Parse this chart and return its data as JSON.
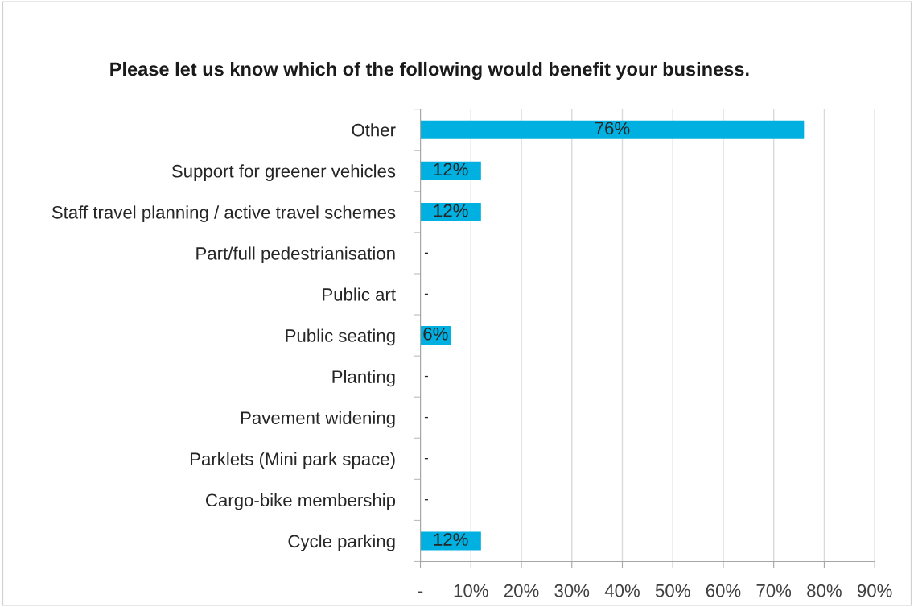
{
  "chart_data": {
    "type": "bar",
    "orientation": "horizontal",
    "title": "Please let us know which of the following would benefit your business.",
    "categories": [
      "Other",
      "Support for greener vehicles",
      "Staff travel planning / active travel schemes",
      "Part/full pedestrianisation",
      "Public art",
      "Public seating",
      "Planting",
      "Pavement widening",
      "Parklets (Mini park space)",
      "Cargo-bike membership",
      "Cycle parking"
    ],
    "values": [
      76,
      12,
      12,
      0,
      0,
      6,
      0,
      0,
      0,
      0,
      12
    ],
    "value_labels": [
      "76%",
      "12%",
      "12%",
      "-",
      "-",
      "6%",
      "-",
      "-",
      "-",
      "-",
      "12%"
    ],
    "color": "#00b0e0",
    "xlim": [
      0,
      90
    ],
    "xticks": [
      {
        "value": 0,
        "label": "-"
      },
      {
        "value": 10,
        "label": "10%"
      },
      {
        "value": 20,
        "label": "20%"
      },
      {
        "value": 30,
        "label": "30%"
      },
      {
        "value": 40,
        "label": "40%"
      },
      {
        "value": 50,
        "label": "50%"
      },
      {
        "value": 60,
        "label": "60%"
      },
      {
        "value": 70,
        "label": "70%"
      },
      {
        "value": 80,
        "label": "80%"
      },
      {
        "value": 90,
        "label": "90%"
      }
    ],
    "grid": "x"
  }
}
